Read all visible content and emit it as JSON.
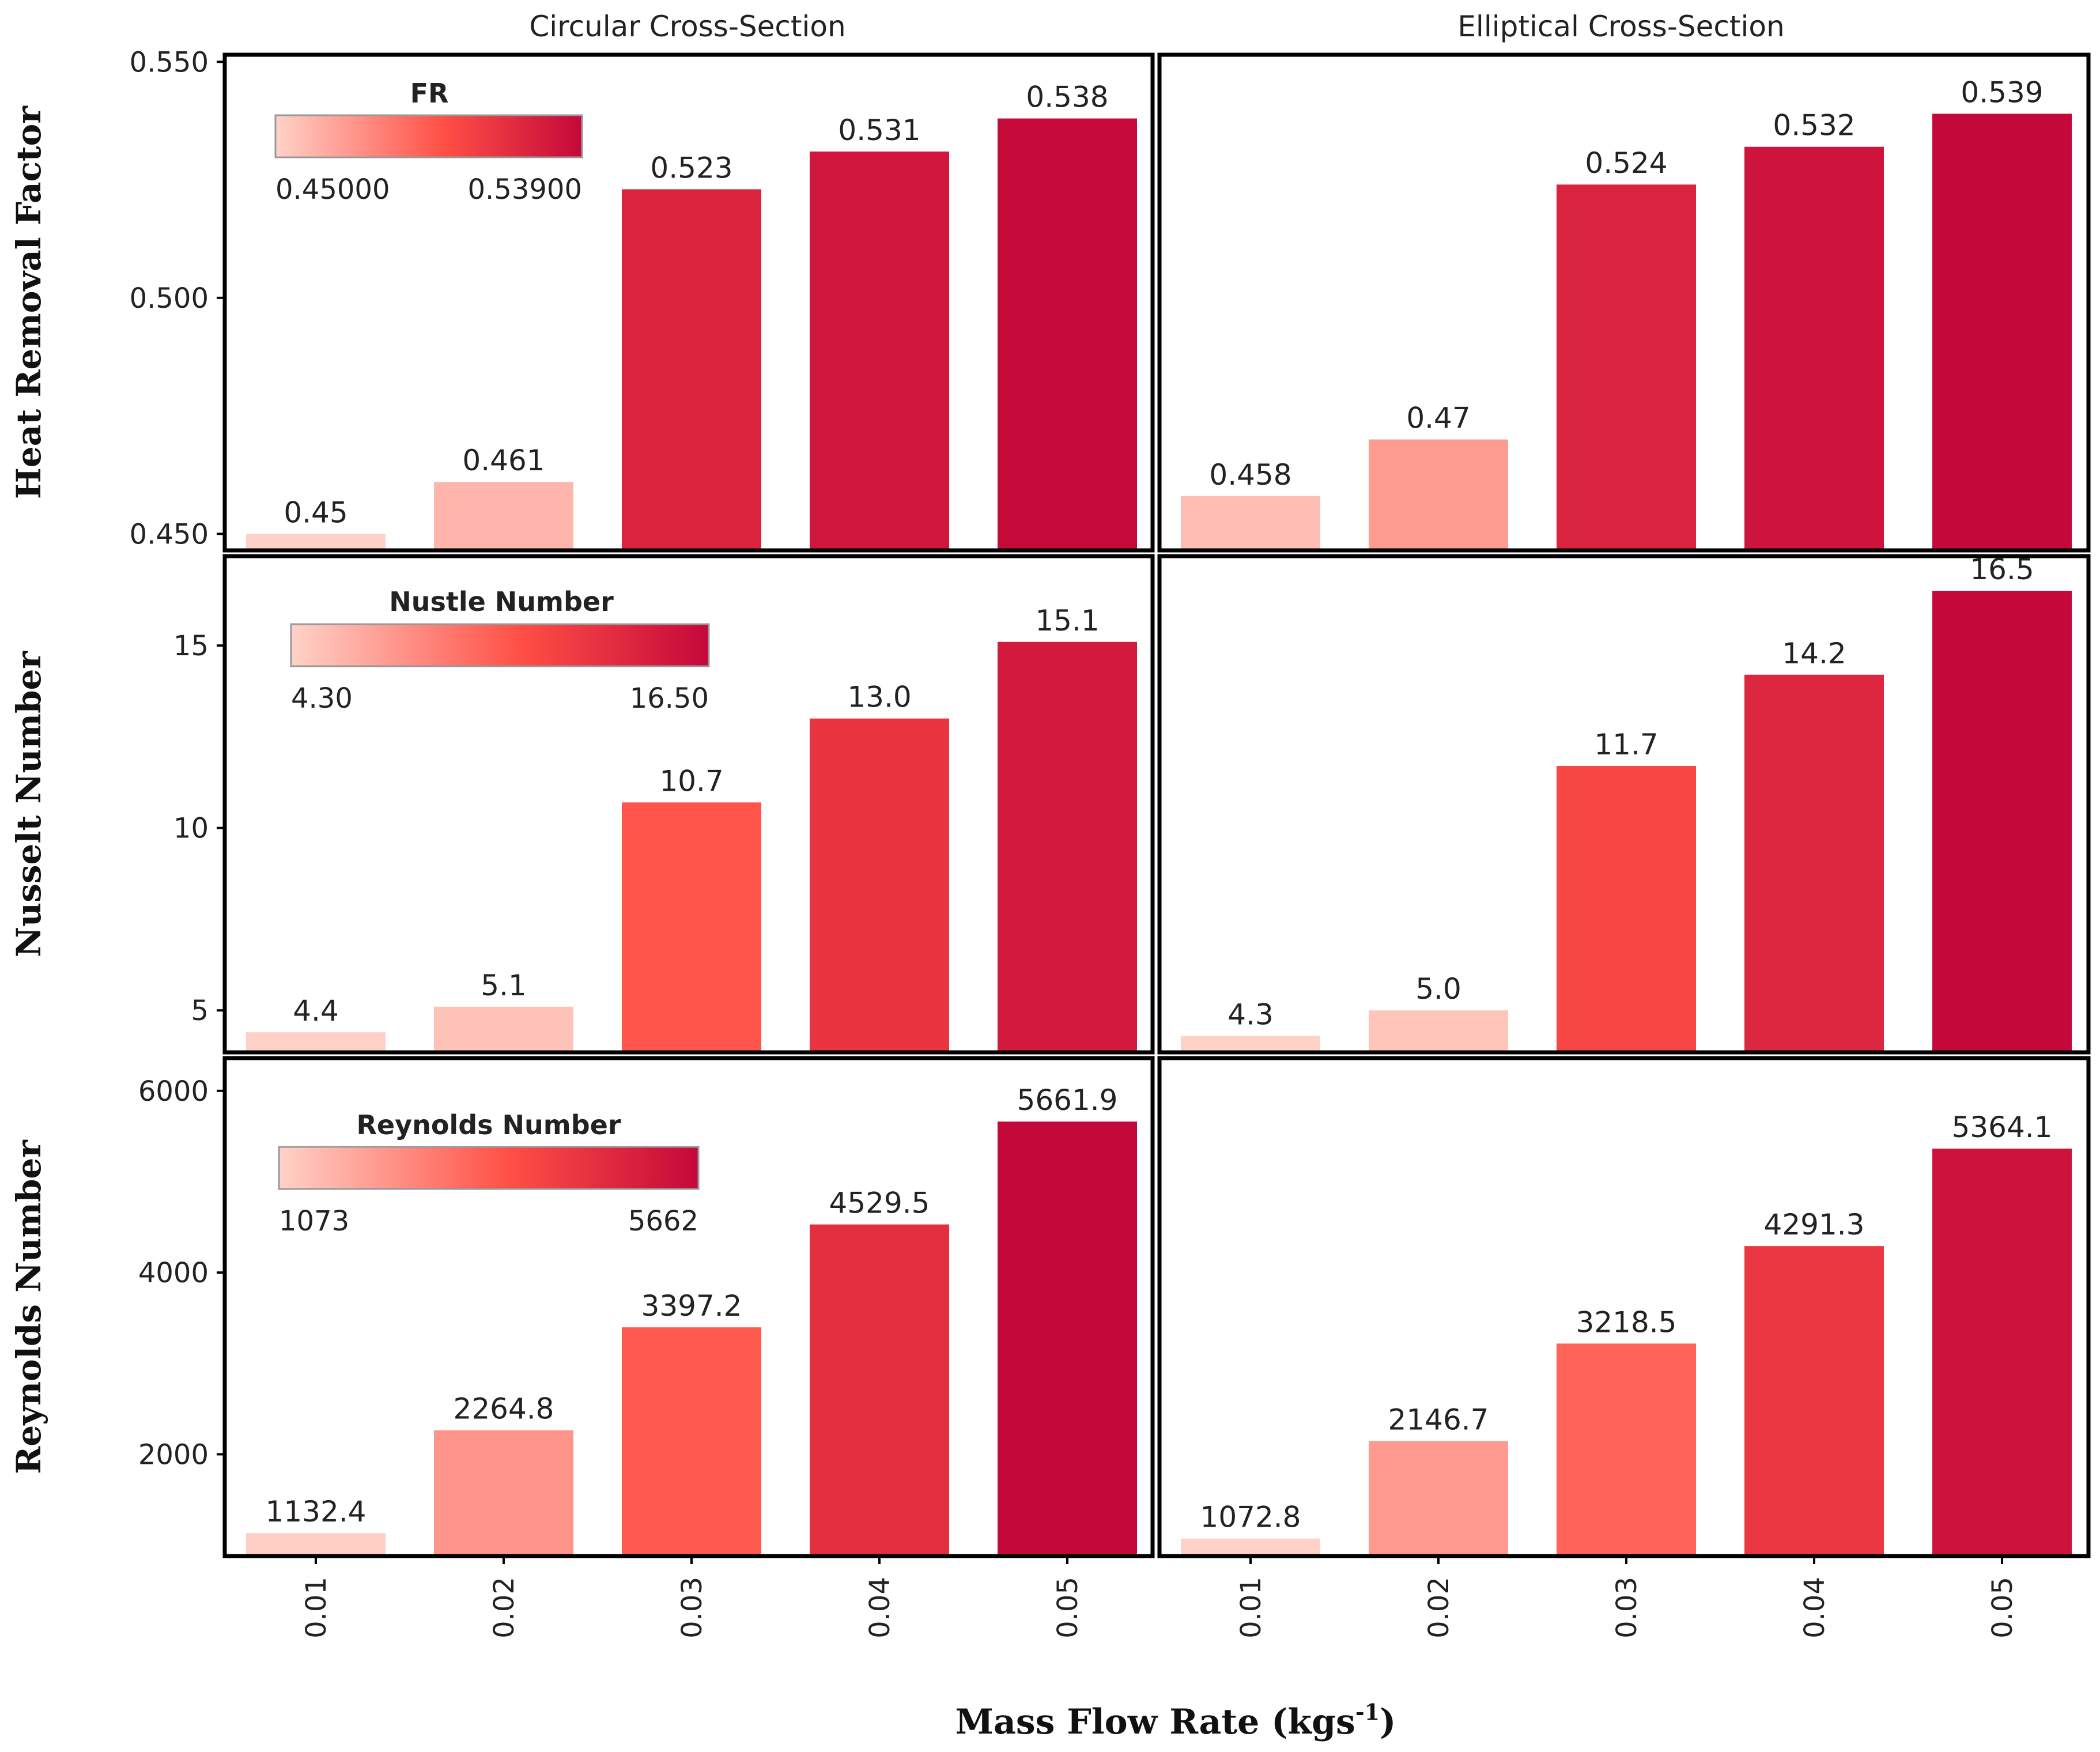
{
  "figure": {
    "x_axis_label": "Mass Flow Rate (kgs",
    "x_axis_label_sup": "-1",
    "x_axis_label_close": ")"
  },
  "colors": {
    "scale_low": "#ffd2c8",
    "scale_mid": "#ff4f45",
    "scale_high": "#c4083a",
    "frame": "#000000",
    "text": "#222222"
  },
  "columns": [
    {
      "title": "Circular Cross-Section"
    },
    {
      "title": "Elliptical Cross-Section"
    }
  ],
  "chart_data": [
    {
      "type": "bar",
      "row": 0,
      "col": 0,
      "ylabel": "Heat Removal Factor",
      "categories": [
        "0.01",
        "0.02",
        "0.03",
        "0.04",
        "0.05"
      ],
      "values": [
        0.45,
        0.461,
        0.523,
        0.531,
        0.538
      ],
      "labels": [
        "0.45",
        "0.461",
        "0.523",
        "0.531",
        "0.538"
      ],
      "ylim": [
        0.4465,
        0.5515
      ],
      "yticks": [
        0.45,
        0.5,
        0.55
      ],
      "ytick_labels": [
        "0.450",
        "0.500",
        "0.550"
      ],
      "color_range": [
        0.45,
        0.539
      ],
      "legend": {
        "title": "FR",
        "min_label": "0.45000",
        "max_label": "0.53900"
      }
    },
    {
      "type": "bar",
      "row": 0,
      "col": 1,
      "categories": [
        "0.01",
        "0.02",
        "0.03",
        "0.04",
        "0.05"
      ],
      "values": [
        0.458,
        0.47,
        0.524,
        0.532,
        0.539
      ],
      "labels": [
        "0.458",
        "0.47",
        "0.524",
        "0.532",
        "0.539"
      ],
      "ylim": [
        0.4465,
        0.5515
      ],
      "color_range": [
        0.45,
        0.539
      ]
    },
    {
      "type": "bar",
      "row": 1,
      "col": 0,
      "ylabel": "Nusselt Number",
      "categories": [
        "0.01",
        "0.02",
        "0.03",
        "0.04",
        "0.05"
      ],
      "values": [
        4.4,
        5.1,
        10.7,
        13.0,
        15.1
      ],
      "labels": [
        "4.4",
        "5.1",
        "10.7",
        "13.0",
        "15.1"
      ],
      "ylim": [
        3.85,
        17.45
      ],
      "yticks": [
        5,
        10,
        15
      ],
      "ytick_labels": [
        "5",
        "10",
        "15"
      ],
      "color_range": [
        4.3,
        16.5
      ],
      "legend": {
        "title": "Nustle Number",
        "min_label": "4.30",
        "max_label": "16.50"
      }
    },
    {
      "type": "bar",
      "row": 1,
      "col": 1,
      "categories": [
        "0.01",
        "0.02",
        "0.03",
        "0.04",
        "0.05"
      ],
      "values": [
        4.3,
        5.0,
        11.7,
        14.2,
        16.5
      ],
      "labels": [
        "4.3",
        "5.0",
        "11.7",
        "14.2",
        "16.5"
      ],
      "ylim": [
        3.85,
        17.45
      ],
      "color_range": [
        4.3,
        16.5
      ]
    },
    {
      "type": "bar",
      "row": 2,
      "col": 0,
      "ylabel": "Reynolds Number",
      "categories": [
        "0.01",
        "0.02",
        "0.03",
        "0.04",
        "0.05"
      ],
      "values": [
        1132.4,
        2264.8,
        3397.2,
        4529.5,
        5661.9
      ],
      "labels": [
        "1132.4",
        "2264.8",
        "3397.2",
        "4529.5",
        "5661.9"
      ],
      "ylim": [
        880,
        6360
      ],
      "yticks": [
        2000,
        4000,
        6000
      ],
      "ytick_labels": [
        "2000",
        "4000",
        "6000"
      ],
      "color_range": [
        1073,
        5662
      ],
      "legend": {
        "title": "Reynolds Number",
        "min_label": "1073",
        "max_label": "5662"
      }
    },
    {
      "type": "bar",
      "row": 2,
      "col": 1,
      "categories": [
        "0.01",
        "0.02",
        "0.03",
        "0.04",
        "0.05"
      ],
      "values": [
        1072.8,
        2146.7,
        3218.5,
        4291.3,
        5364.1
      ],
      "labels": [
        "1072.8",
        "2146.7",
        "3218.5",
        "4291.3",
        "5364.1"
      ],
      "ylim": [
        880,
        6360
      ],
      "color_range": [
        1073,
        5662
      ]
    }
  ]
}
